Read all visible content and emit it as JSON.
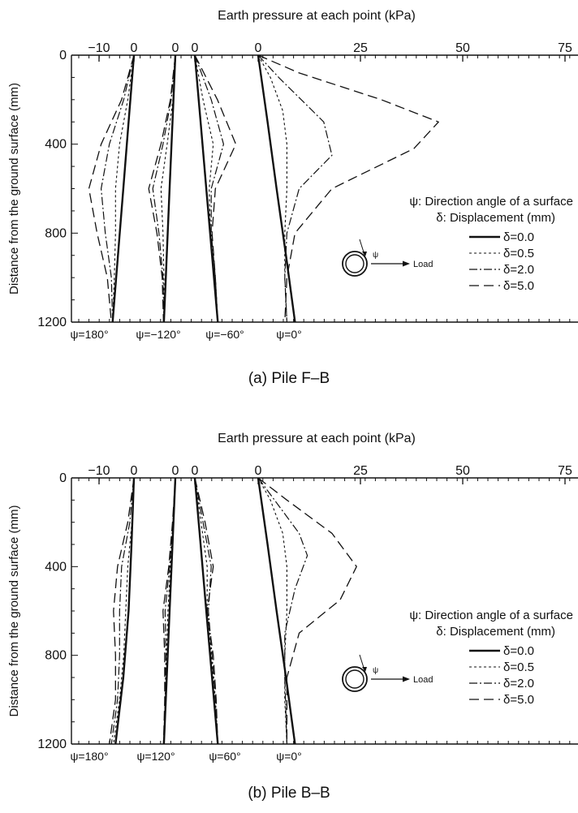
{
  "chart_data": [
    {
      "type": "line",
      "title": "Earth pressure at each point (kPa)",
      "ylabel": "Distance from the ground surface (mm)",
      "caption": "(a) Pile F–B",
      "x_ticks": [
        "−10",
        "0",
        "0",
        "0",
        "0",
        "25",
        "50",
        "75"
      ],
      "y_ticks": [
        "0",
        "400",
        "800",
        "1200"
      ],
      "ylim": [
        0,
        1200
      ],
      "grid": false,
      "legend_position": "right",
      "legend": {
        "title_line1": "ψ: Direction angle of a surface",
        "title_line2": "δ: Displacement (mm)",
        "diagram_label": "Load",
        "diagram_angle": "ψ",
        "entries": [
          "δ=0.0",
          "δ=0.5",
          "δ=2.0",
          "δ=5.0"
        ]
      },
      "groups": [
        {
          "label": "ψ=180°",
          "zero_kpa": 0,
          "series": [
            {
              "name": "δ=0.0",
              "y": [
                0,
                300,
                600,
                900,
                1200
              ],
              "x": [
                0,
                -1.3,
                -2.6,
                -3.9,
                -5.2
              ]
            },
            {
              "name": "δ=0.5",
              "y": [
                0,
                200,
                400,
                600,
                800,
                1000,
                1200
              ],
              "x": [
                0,
                -1.5,
                -3.5,
                -4.5,
                -4.5,
                -4.8,
                -5.2
              ]
            },
            {
              "name": "δ=2.0",
              "y": [
                0,
                200,
                400,
                600,
                800,
                1000,
                1200
              ],
              "x": [
                0,
                -2.5,
                -6,
                -8,
                -7,
                -5.5,
                -5.2
              ]
            },
            {
              "name": "δ=5.0",
              "y": [
                0,
                200,
                400,
                600,
                800,
                1000,
                1200
              ],
              "x": [
                0,
                -3,
                -8,
                -11,
                -9,
                -6.5,
                -5.5
              ]
            }
          ]
        },
        {
          "label": "ψ=−120°",
          "zero_kpa": 12,
          "series": [
            {
              "name": "δ=0.0",
              "y": [
                0,
                300,
                600,
                900,
                1200
              ],
              "x": [
                0,
                -0.7,
                -1.4,
                -2.1,
                -2.8
              ]
            },
            {
              "name": "δ=0.5",
              "y": [
                0,
                200,
                400,
                600,
                800,
                1000,
                1200
              ],
              "x": [
                0,
                -0.6,
                -2,
                -3.5,
                -3,
                -2.8,
                -2.8
              ]
            },
            {
              "name": "δ=2.0",
              "y": [
                0,
                200,
                400,
                600,
                800,
                1000,
                1200
              ],
              "x": [
                0,
                -1,
                -3,
                -5.5,
                -4,
                -3,
                -2.8
              ]
            },
            {
              "name": "δ=5.0",
              "y": [
                0,
                200,
                400,
                600,
                800,
                1000,
                1200
              ],
              "x": [
                0,
                -1.2,
                -3.5,
                -6.5,
                -4.5,
                -3.2,
                -2.9
              ]
            }
          ]
        },
        {
          "label": "ψ=−60°",
          "zero_kpa": 18,
          "series": [
            {
              "name": "δ=0.0",
              "y": [
                0,
                300,
                600,
                900,
                1200
              ],
              "x": [
                0,
                1.4,
                2.8,
                4.2,
                5.6
              ]
            },
            {
              "name": "δ=0.5",
              "y": [
                0,
                200,
                400,
                600,
                800,
                1000,
                1200
              ],
              "x": [
                0,
                2,
                4.5,
                3.5,
                3.8,
                4.8,
                5.5
              ]
            },
            {
              "name": "δ=2.0",
              "y": [
                0,
                200,
                400,
                600,
                800,
                1000,
                1200
              ],
              "x": [
                0,
                4,
                7,
                4,
                4,
                5,
                5.6
              ]
            },
            {
              "name": "δ=5.0",
              "y": [
                0,
                200,
                400,
                600,
                800,
                1000,
                1200
              ],
              "x": [
                0,
                5.5,
                10,
                5,
                4.2,
                5,
                5.6
              ]
            }
          ]
        },
        {
          "label": "ψ=0°",
          "zero_kpa": 0,
          "series": [
            {
              "name": "δ=0.0",
              "y": [
                0,
                300,
                600,
                900,
                1200
              ],
              "x": [
                0,
                2.3,
                4.5,
                6.8,
                9
              ]
            },
            {
              "name": "δ=0.5",
              "y": [
                0,
                100,
                250,
                400,
                600,
                800,
                1000,
                1200
              ],
              "x": [
                0,
                3,
                6,
                7,
                7,
                6.5,
                6.5,
                7
              ]
            },
            {
              "name": "δ=2.0",
              "y": [
                0,
                100,
                300,
                450,
                600,
                800,
                1000,
                1200
              ],
              "x": [
                0,
                5,
                16,
                18,
                10,
                7,
                6.5,
                7
              ]
            },
            {
              "name": "δ=5.0",
              "y": [
                0,
                80,
                200,
                300,
                420,
                600,
                800,
                1000,
                1200
              ],
              "x": [
                0,
                10,
                30,
                44,
                38,
                18,
                9,
                7,
                6.5
              ]
            }
          ]
        }
      ]
    },
    {
      "type": "line",
      "title": "Earth pressure at each point (kPa)",
      "ylabel": "Distance from the ground surface (mm)",
      "caption": "(b) Pile B–B",
      "x_ticks": [
        "−10",
        "0",
        "0",
        "0",
        "0",
        "25",
        "50",
        "75"
      ],
      "y_ticks": [
        "0",
        "400",
        "800",
        "1200"
      ],
      "ylim": [
        0,
        1200
      ],
      "grid": false,
      "legend_position": "right",
      "legend": {
        "title_line1": "ψ: Direction angle of a surface",
        "title_line2": "δ: Displacement (mm)",
        "diagram_label": "Load",
        "diagram_angle": "ψ",
        "entries": [
          "δ=0.0",
          "δ=0.5",
          "δ=2.0",
          "δ=5.0"
        ]
      },
      "groups": [
        {
          "label": "ψ=180°",
          "zero_kpa": 0,
          "series": [
            {
              "name": "δ=0.0",
              "y": [
                0,
                300,
                600,
                900,
                1200
              ],
              "x": [
                0,
                -0.6,
                -1.3,
                -2.6,
                -4.5
              ]
            },
            {
              "name": "δ=0.5",
              "y": [
                0,
                200,
                400,
                600,
                800,
                1000,
                1200
              ],
              "x": [
                0,
                -0.5,
                -1.5,
                -2,
                -2.5,
                -3.5,
                -5
              ]
            },
            {
              "name": "δ=2.0",
              "y": [
                0,
                200,
                400,
                600,
                800,
                1000,
                1200
              ],
              "x": [
                0,
                -1,
                -3,
                -3.5,
                -3.5,
                -4,
                -5.5
              ]
            },
            {
              "name": "δ=5.0",
              "y": [
                0,
                200,
                400,
                600,
                800,
                1000,
                1200
              ],
              "x": [
                0,
                -1.5,
                -4,
                -5,
                -4.5,
                -4.5,
                -6
              ]
            }
          ]
        },
        {
          "label": "ψ=120°",
          "zero_kpa": 12,
          "series": [
            {
              "name": "δ=0.0",
              "y": [
                0,
                300,
                600,
                900,
                1200
              ],
              "x": [
                0,
                -0.7,
                -1.4,
                -2.1,
                -2.8
              ]
            },
            {
              "name": "δ=0.5",
              "y": [
                0,
                200,
                400,
                600,
                800,
                1000,
                1200
              ],
              "x": [
                0,
                -0.5,
                -1.2,
                -1.8,
                -2.2,
                -2.5,
                -2.8
              ]
            },
            {
              "name": "δ=2.0",
              "y": [
                0,
                200,
                400,
                600,
                800,
                1000,
                1200
              ],
              "x": [
                0,
                -0.6,
                -1.4,
                -2.5,
                -2.3,
                -2.5,
                -2.8
              ]
            },
            {
              "name": "δ=5.0",
              "y": [
                0,
                200,
                400,
                600,
                800,
                1000,
                1200
              ],
              "x": [
                0,
                -0.7,
                -1.6,
                -3,
                -2.6,
                -2.6,
                -2.9
              ]
            }
          ]
        },
        {
          "label": "ψ=60°",
          "zero_kpa": 18,
          "series": [
            {
              "name": "δ=0.0",
              "y": [
                0,
                300,
                600,
                900,
                1200
              ],
              "x": [
                0,
                1.4,
                2.8,
                4.2,
                5.6
              ]
            },
            {
              "name": "δ=0.5",
              "y": [
                0,
                200,
                400,
                600,
                800,
                1000,
                1200
              ],
              "x": [
                0,
                1.5,
                3,
                3,
                4,
                5,
                5.6
              ]
            },
            {
              "name": "δ=2.0",
              "y": [
                0,
                200,
                400,
                600,
                800,
                1000,
                1200
              ],
              "x": [
                0,
                2,
                4,
                3.3,
                4.2,
                5,
                5.6
              ]
            },
            {
              "name": "δ=5.0",
              "y": [
                0,
                200,
                400,
                600,
                800,
                1000,
                1200
              ],
              "x": [
                0,
                2.5,
                4.5,
                3,
                4.5,
                5.2,
                5.6
              ]
            }
          ]
        },
        {
          "label": "ψ=0°",
          "zero_kpa": 0,
          "series": [
            {
              "name": "δ=0.0",
              "y": [
                0,
                300,
                600,
                900,
                1200
              ],
              "x": [
                0,
                2.3,
                4.5,
                6.8,
                9
              ]
            },
            {
              "name": "δ=0.5",
              "y": [
                0,
                100,
                250,
                400,
                600,
                800,
                1000,
                1200
              ],
              "x": [
                0,
                3,
                6,
                7,
                7,
                6.5,
                6.5,
                7
              ]
            },
            {
              "name": "δ=2.0",
              "y": [
                0,
                100,
                250,
                350,
                500,
                700,
                900,
                1200
              ],
              "x": [
                0,
                4,
                10,
                12,
                9,
                6.5,
                6.5,
                7
              ]
            },
            {
              "name": "δ=5.0",
              "y": [
                0,
                100,
                250,
                400,
                550,
                700,
                900,
                1200
              ],
              "x": [
                0,
                7,
                18,
                24,
                20,
                10,
                7,
                7
              ]
            }
          ]
        }
      ]
    }
  ]
}
